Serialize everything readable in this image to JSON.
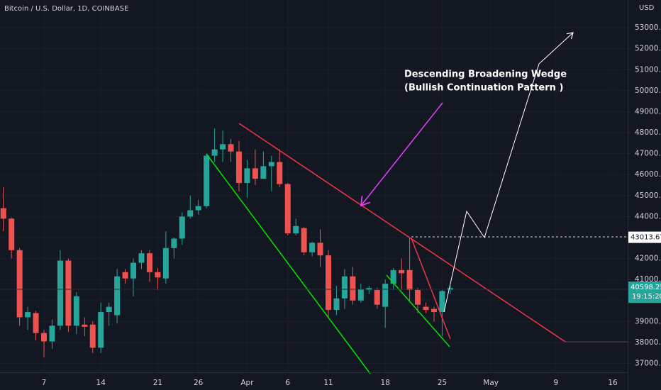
{
  "chart_data": {
    "type": "candlestick",
    "title": "Bitcoin / U.S. Dollar, 1D, COINBASE",
    "currency": "USD",
    "annotation": [
      "Descending Broadening Wedge",
      "(Bullish Continuation Pattern )"
    ],
    "up_color": "#26a69a",
    "down_color": "#ef5350",
    "grid": true,
    "categories": [
      null,
      null,
      null,
      null,
      null,
      "7",
      null,
      null,
      null,
      null,
      null,
      null,
      "14",
      null,
      null,
      null,
      null,
      null,
      null,
      "21",
      null,
      null,
      null,
      null,
      "26",
      null,
      null,
      null,
      null,
      null,
      "Apr",
      null,
      null,
      null,
      null,
      "6",
      null,
      null,
      null,
      null,
      "11",
      null,
      null,
      null,
      null,
      null,
      null,
      "18",
      null,
      null,
      null,
      null,
      null,
      null,
      "25",
      null,
      null,
      null,
      null,
      null,
      "May",
      null,
      null,
      null,
      null,
      null,
      null,
      null,
      "9",
      null,
      null,
      null,
      null,
      null,
      null,
      "16",
      null
    ],
    "open": [
      44400,
      43900,
      42400,
      39200,
      39400,
      38450,
      38050,
      38800,
      41900,
      38800,
      38850,
      38850,
      37750,
      39450,
      39300,
      41350,
      41050,
      41800,
      42250,
      41350,
      41050,
      42500,
      42950,
      44000,
      44300,
      44500,
      46900,
      47200,
      47450,
      47100,
      45600,
      46300,
      45800,
      46400,
      46600,
      45550,
      43200,
      43450,
      42300,
      42750,
      42150,
      39550,
      40100,
      41150,
      40000,
      40500,
      40500,
      39700,
      40800,
      41450,
      41450,
      40500,
      39700,
      39600,
      39450,
      40500,
      null,
      null,
      null,
      null,
      null,
      null,
      null,
      null,
      null,
      null,
      null,
      null,
      null,
      null,
      null,
      null,
      null,
      null,
      null,
      null,
      null
    ],
    "high": [
      45400,
      43950,
      42500,
      39700,
      39500,
      38600,
      39100,
      42400,
      42000,
      40400,
      39200,
      39000,
      39900,
      39900,
      41500,
      41500,
      42000,
      42400,
      42400,
      41550,
      43300,
      43000,
      44200,
      45000,
      44800,
      47000,
      48200,
      48100,
      47700,
      47600,
      46700,
      47200,
      47100,
      46900,
      47200,
      45600,
      43900,
      43500,
      42800,
      43400,
      42400,
      40700,
      41500,
      41600,
      40800,
      40700,
      40600,
      41000,
      41550,
      42000,
      43000,
      40600,
      39900,
      39700,
      40500,
      40700,
      null,
      null,
      null,
      null,
      null,
      null,
      null,
      null,
      null,
      null,
      null,
      null,
      null,
      null,
      null,
      null,
      null,
      null,
      null,
      null,
      null
    ],
    "low": [
      43300,
      42000,
      38800,
      38600,
      38100,
      37300,
      37700,
      38600,
      38500,
      38400,
      38300,
      37500,
      37500,
      38800,
      38900,
      40800,
      40200,
      41500,
      40900,
      40500,
      40800,
      42000,
      42650,
      43900,
      44100,
      44400,
      46600,
      46600,
      46600,
      45200,
      44900,
      45500,
      45800,
      45200,
      45400,
      43100,
      43100,
      42150,
      42100,
      41600,
      39200,
      39300,
      39600,
      39800,
      39900,
      40300,
      39600,
      38700,
      40500,
      40500,
      40000,
      39400,
      39400,
      39000,
      38300,
      40300,
      null,
      null,
      null,
      null,
      null,
      null,
      null,
      null,
      null,
      null,
      null,
      null,
      null,
      null,
      null,
      null,
      null,
      null,
      null,
      null,
      null
    ],
    "close": [
      43900,
      42400,
      39200,
      39450,
      38450,
      38050,
      38800,
      41900,
      38800,
      40200,
      38750,
      37750,
      39450,
      39700,
      41150,
      41050,
      41800,
      42250,
      41350,
      41100,
      42500,
      42950,
      44000,
      44300,
      44500,
      46900,
      47200,
      47450,
      47100,
      45600,
      46300,
      45800,
      46400,
      46600,
      45550,
      43200,
      43550,
      42300,
      42750,
      42150,
      39550,
      40100,
      41150,
      40000,
      40550,
      40600,
      39800,
      40800,
      41450,
      41300,
      40500,
      39800,
      39550,
      39450,
      40450,
      40600,
      null,
      null,
      null,
      null,
      null,
      null,
      null,
      null,
      null,
      null,
      null,
      null,
      null,
      null,
      null,
      null,
      null,
      null,
      null,
      null,
      null
    ],
    "ylim": [
      36580,
      54320
    ],
    "yticks": [
      {
        "value": 37000,
        "label": "37000.00"
      },
      {
        "value": 38000,
        "label": "38000.00"
      },
      {
        "value": 39000,
        "label": "39000.00"
      },
      {
        "value": 40000,
        "label": "40000.00"
      },
      {
        "value": 41000,
        "label": "41000.00"
      },
      {
        "value": 42000,
        "label": "42000.00"
      },
      {
        "value": 43000,
        "label": "43000.00"
      },
      {
        "value": 44000,
        "label": "44000.00"
      },
      {
        "value": 45000,
        "label": "45000.00"
      },
      {
        "value": 46000,
        "label": "46000.00"
      },
      {
        "value": 47000,
        "label": "47000.00"
      },
      {
        "value": 48000,
        "label": "48000.00"
      },
      {
        "value": 49000,
        "label": "49000.00"
      },
      {
        "value": 50000,
        "label": "50000.00"
      },
      {
        "value": 51000,
        "label": "51000.00"
      },
      {
        "value": 52000,
        "label": "52000.00"
      },
      {
        "value": 53000,
        "label": "53000.00"
      }
    ],
    "alert_price": 43013.67,
    "last_price": 40598.25,
    "countdown": "19:15:20"
  }
}
